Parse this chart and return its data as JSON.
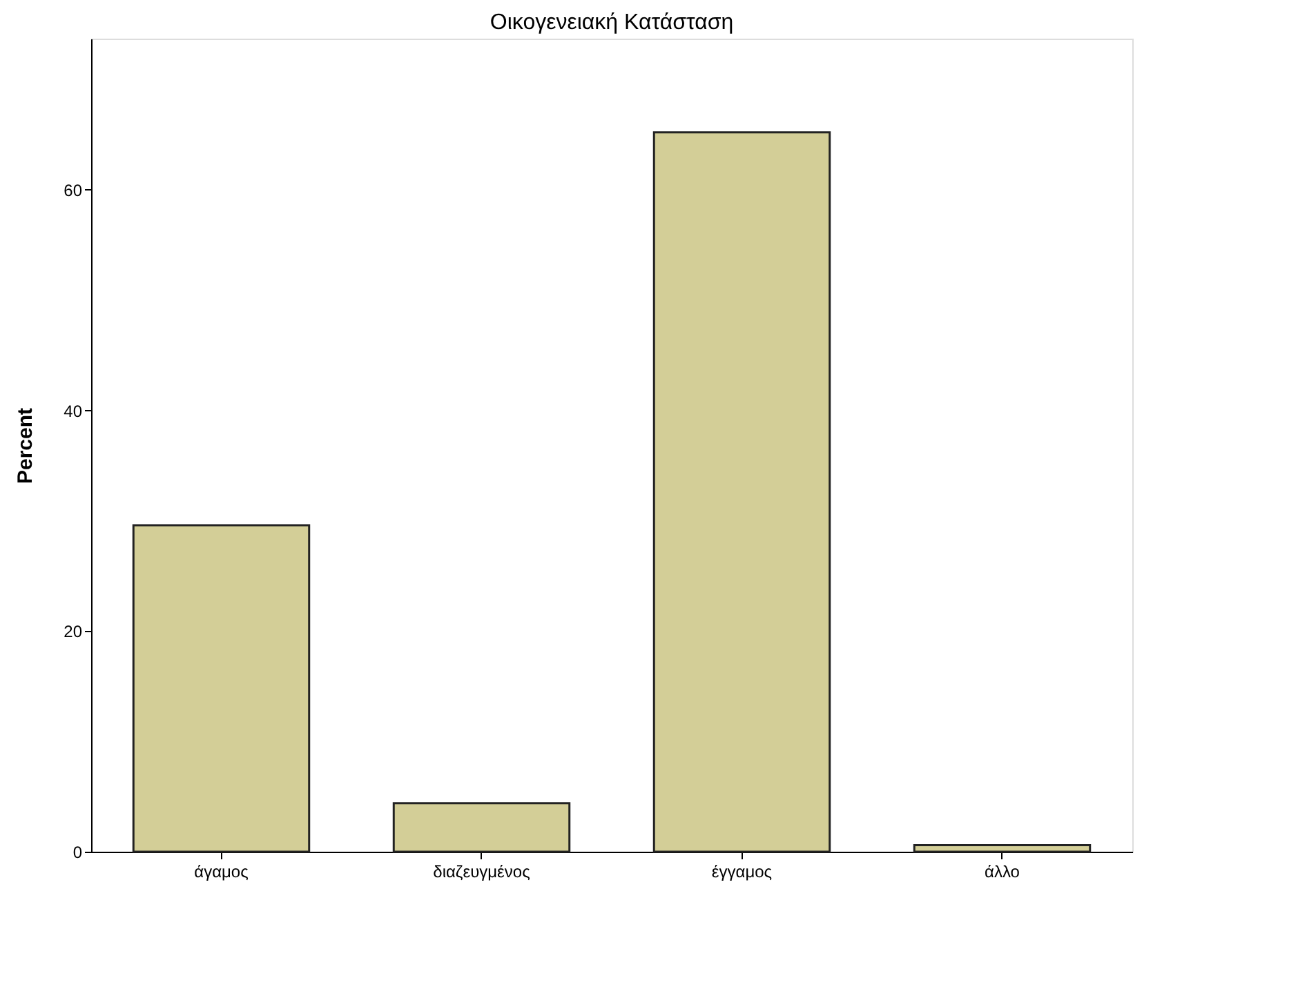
{
  "chart_data": {
    "type": "bar",
    "title": "Οικογενειακή Κατάσταση",
    "ylabel": "Percent",
    "categories": [
      "άγαμος",
      "διαζευγμένος",
      "έγγαμος",
      "άλλο"
    ],
    "values": [
      29.6,
      4.4,
      65.2,
      0.6
    ],
    "color": "#d3ce97",
    "ylim": [
      0,
      73.7
    ],
    "yticks": [
      0,
      20,
      40,
      60
    ],
    "grid": false
  }
}
